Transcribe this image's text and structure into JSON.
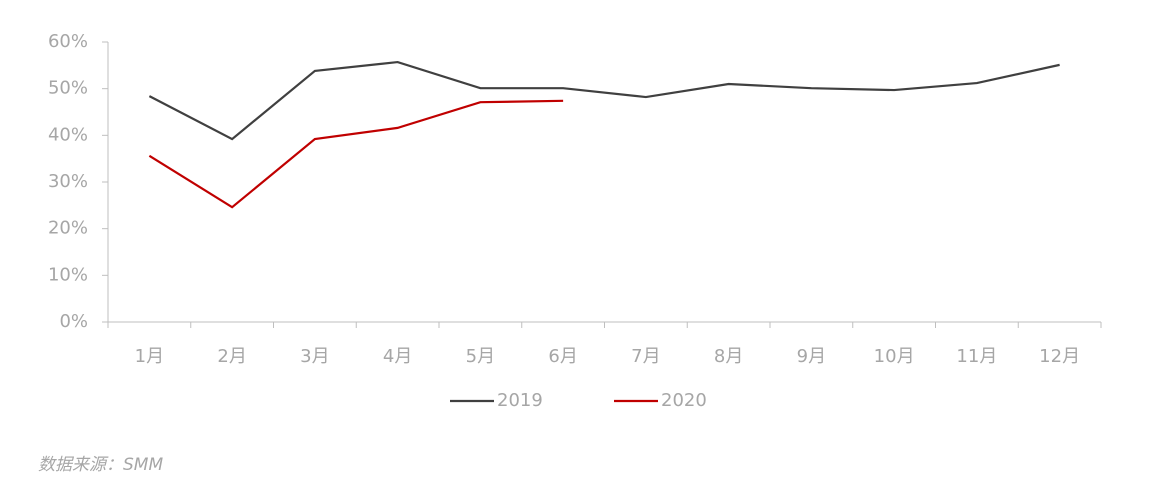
{
  "chart_data": {
    "type": "line",
    "categories": [
      "1月",
      "2月",
      "3月",
      "4月",
      "5月",
      "6月",
      "7月",
      "8月",
      "9月",
      "10月",
      "11月",
      "12月"
    ],
    "series": [
      {
        "name": "2019",
        "color": "#404040",
        "values": [
          48.4,
          39.2,
          53.8,
          55.7,
          50.1,
          50.1,
          48.2,
          51.0,
          50.1,
          49.7,
          51.2,
          55.1
        ]
      },
      {
        "name": "2020",
        "color": "#c00000",
        "values": [
          35.6,
          24.6,
          39.2,
          41.6,
          47.1,
          47.4,
          null,
          null,
          null,
          null,
          null,
          null
        ]
      }
    ],
    "ylim": [
      0,
      60
    ],
    "yticks": [
      {
        "value": 0,
        "label": "0%"
      },
      {
        "value": 10,
        "label": "10%"
      },
      {
        "value": 20,
        "label": "20%"
      },
      {
        "value": 30,
        "label": "30%"
      },
      {
        "value": 40,
        "label": "40%"
      },
      {
        "value": 50,
        "label": "50%"
      },
      {
        "value": 60,
        "label": "60%"
      }
    ],
    "grid": false,
    "legend": "bottom",
    "source": "数据来源：SMM"
  }
}
